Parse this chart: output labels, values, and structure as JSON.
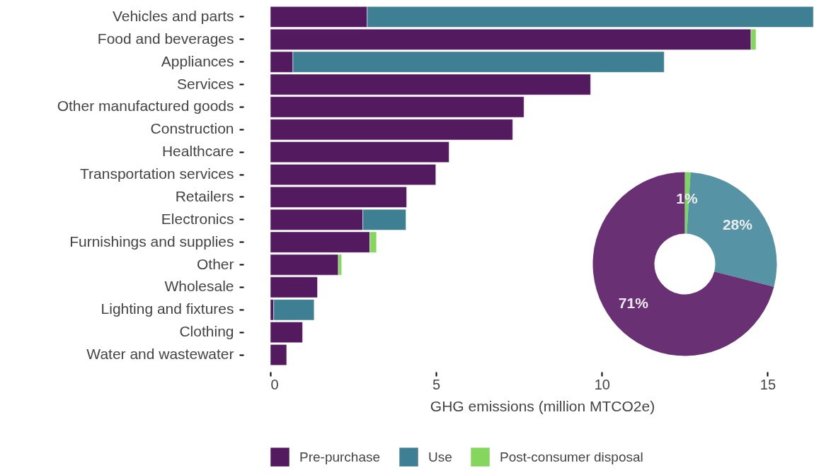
{
  "chart_data": [
    {
      "type": "bar",
      "orientation": "horizontal",
      "stacked": true,
      "xlabel": "GHG emissions (million MTCO2e)",
      "xlim": [
        0,
        16.4
      ],
      "xticks": [
        0,
        5,
        10,
        15
      ],
      "legend": "bottom",
      "categories": [
        "Vehicles and parts",
        "Food and beverages",
        "Appliances",
        "Services",
        "Other manufactured goods",
        "Construction",
        "Healthcare",
        "Transportation services",
        "Retailers",
        "Electronics",
        "Furnishings and supplies",
        "Other",
        "Wholesale",
        "Lighting and fixtures",
        "Clothing",
        "Water and wastewater"
      ],
      "series": [
        {
          "name": "Pre-purchase",
          "color": "#531a60",
          "values": [
            2.92,
            14.5,
            0.68,
            9.66,
            7.65,
            7.31,
            5.39,
            4.99,
            4.11,
            2.79,
            3.0,
            2.05,
            1.42,
            0.1,
            0.97,
            0.49
          ]
        },
        {
          "name": "Use",
          "color": "#3e7f93",
          "values": [
            13.46,
            null,
            11.2,
            null,
            null,
            null,
            null,
            null,
            null,
            1.3,
            null,
            null,
            null,
            1.22,
            null,
            null
          ]
        },
        {
          "name": "Post-consumer disposal",
          "color": "#84d65c",
          "values": [
            null,
            0.15,
            null,
            null,
            null,
            null,
            null,
            null,
            null,
            null,
            0.2,
            0.1,
            null,
            null,
            null,
            null
          ]
        }
      ]
    },
    {
      "type": "donut",
      "categories": [
        null,
        null,
        null
      ],
      "values": [
        1,
        28,
        71
      ],
      "colors": [
        "#7fd35e",
        "#5593a5",
        "#693174"
      ],
      "value_labels": [
        "1%",
        "28%",
        "71%"
      ]
    }
  ]
}
